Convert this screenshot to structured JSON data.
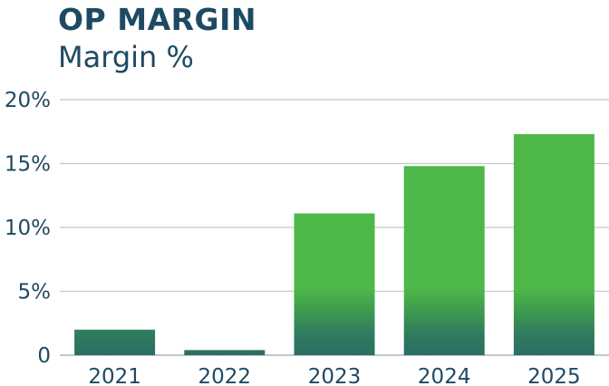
{
  "chart_data": {
    "type": "bar",
    "title": "OP MARGIN",
    "subtitle": "Margin %",
    "xlabel": "",
    "ylabel": "",
    "categories": [
      "2021",
      "2022",
      "2023",
      "2024",
      "2025"
    ],
    "values": [
      2.0,
      0.4,
      11.1,
      14.8,
      17.3
    ],
    "ylim": [
      0,
      20
    ],
    "yticks": [
      0,
      5,
      10,
      15,
      20
    ],
    "ytick_labels": [
      "0",
      "5%",
      "10%",
      "15%",
      "20%"
    ],
    "grid": true,
    "legend": "none",
    "colors": {
      "bar_top": "#4db848",
      "bar_bottom": "#2a6e63",
      "grid": "#c8c8c8",
      "text": "#1d4a63"
    }
  }
}
